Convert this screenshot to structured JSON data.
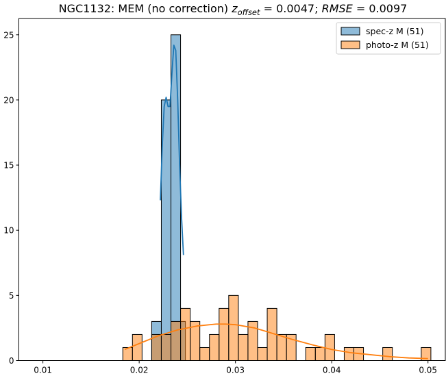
{
  "chart_data": {
    "type": "histogram",
    "title": {
      "prefix": "NGC1132: MEM (no correction) ",
      "z_var": "z",
      "z_sub": "offset",
      "eq1": " = 0.0047; ",
      "rmse_var": "RMSE",
      "eq2": " = 0.0097"
    },
    "xlabel": "",
    "ylabel": "",
    "xlim": [
      0.0075,
      0.0518
    ],
    "ylim": [
      0,
      26.25
    ],
    "xticks": [
      0.01,
      0.02,
      0.03,
      0.04,
      0.05
    ],
    "xtick_labels": [
      "0.01",
      "0.02",
      "0.03",
      "0.04",
      "0.05"
    ],
    "yticks": [
      0,
      5,
      10,
      15,
      20,
      25
    ],
    "ytick_labels": [
      "0",
      "5",
      "10",
      "15",
      "20",
      "25"
    ],
    "legend_position": "upper right",
    "series": [
      {
        "name": "spec-z M (51)",
        "color": "#1f77b4",
        "bins": [
          {
            "x0": 0.0213,
            "x1": 0.0223,
            "count": 3
          },
          {
            "x0": 0.0223,
            "x1": 0.0233,
            "count": 20
          },
          {
            "x0": 0.0233,
            "x1": 0.0243,
            "count": 25
          },
          {
            "x0": 0.0243,
            "x1": 0.0248,
            "count": 3
          }
        ],
        "kde": {
          "x": [
            0.0222,
            0.0224,
            0.0226,
            0.0228,
            0.023,
            0.0232,
            0.0234,
            0.0236,
            0.0238,
            0.024,
            0.0242,
            0.0244,
            0.0246
          ],
          "y": [
            12.3,
            16.5,
            19.5,
            20.2,
            19.5,
            19.5,
            22.0,
            24.2,
            23.8,
            20.0,
            15.0,
            11.0,
            8.1
          ]
        }
      },
      {
        "name": "photo-z M (51)",
        "color": "#ff7f0e",
        "bins": [
          {
            "x0": 0.0183,
            "x1": 0.0193,
            "count": 1
          },
          {
            "x0": 0.0193,
            "x1": 0.0203,
            "count": 2
          },
          {
            "x0": 0.0203,
            "x1": 0.0213,
            "count": 0
          },
          {
            "x0": 0.0213,
            "x1": 0.0223,
            "count": 2
          },
          {
            "x0": 0.0223,
            "x1": 0.0233,
            "count": 2
          },
          {
            "x0": 0.0233,
            "x1": 0.0243,
            "count": 3
          },
          {
            "x0": 0.0243,
            "x1": 0.0253,
            "count": 4
          },
          {
            "x0": 0.0253,
            "x1": 0.0263,
            "count": 3
          },
          {
            "x0": 0.0263,
            "x1": 0.0273,
            "count": 1
          },
          {
            "x0": 0.0273,
            "x1": 0.0283,
            "count": 2
          },
          {
            "x0": 0.0283,
            "x1": 0.0293,
            "count": 4
          },
          {
            "x0": 0.0293,
            "x1": 0.0303,
            "count": 5
          },
          {
            "x0": 0.0303,
            "x1": 0.0313,
            "count": 2
          },
          {
            "x0": 0.0313,
            "x1": 0.0323,
            "count": 3
          },
          {
            "x0": 0.0323,
            "x1": 0.0333,
            "count": 1
          },
          {
            "x0": 0.0333,
            "x1": 0.0343,
            "count": 4
          },
          {
            "x0": 0.0343,
            "x1": 0.0353,
            "count": 2
          },
          {
            "x0": 0.0353,
            "x1": 0.0363,
            "count": 2
          },
          {
            "x0": 0.0363,
            "x1": 0.0373,
            "count": 0
          },
          {
            "x0": 0.0373,
            "x1": 0.0383,
            "count": 1
          },
          {
            "x0": 0.0383,
            "x1": 0.0393,
            "count": 1
          },
          {
            "x0": 0.0393,
            "x1": 0.0403,
            "count": 2
          },
          {
            "x0": 0.0403,
            "x1": 0.0413,
            "count": 0
          },
          {
            "x0": 0.0413,
            "x1": 0.0423,
            "count": 1
          },
          {
            "x0": 0.0423,
            "x1": 0.0433,
            "count": 1
          },
          {
            "x0": 0.0433,
            "x1": 0.0443,
            "count": 0
          },
          {
            "x0": 0.0443,
            "x1": 0.0453,
            "count": 0
          },
          {
            "x0": 0.0453,
            "x1": 0.0463,
            "count": 1
          },
          {
            "x0": 0.0463,
            "x1": 0.0473,
            "count": 0
          },
          {
            "x0": 0.0473,
            "x1": 0.0483,
            "count": 0
          },
          {
            "x0": 0.0483,
            "x1": 0.0493,
            "count": 0
          },
          {
            "x0": 0.0493,
            "x1": 0.0503,
            "count": 1
          }
        ],
        "kde": {
          "x": [
            0.0185,
            0.02,
            0.022,
            0.024,
            0.026,
            0.028,
            0.029,
            0.03,
            0.032,
            0.034,
            0.036,
            0.038,
            0.04,
            0.042,
            0.044,
            0.046,
            0.048,
            0.05
          ],
          "y": [
            0.85,
            1.3,
            1.9,
            2.35,
            2.65,
            2.8,
            2.8,
            2.75,
            2.5,
            2.05,
            1.6,
            1.2,
            0.85,
            0.6,
            0.45,
            0.3,
            0.2,
            0.15
          ]
        }
      }
    ]
  }
}
